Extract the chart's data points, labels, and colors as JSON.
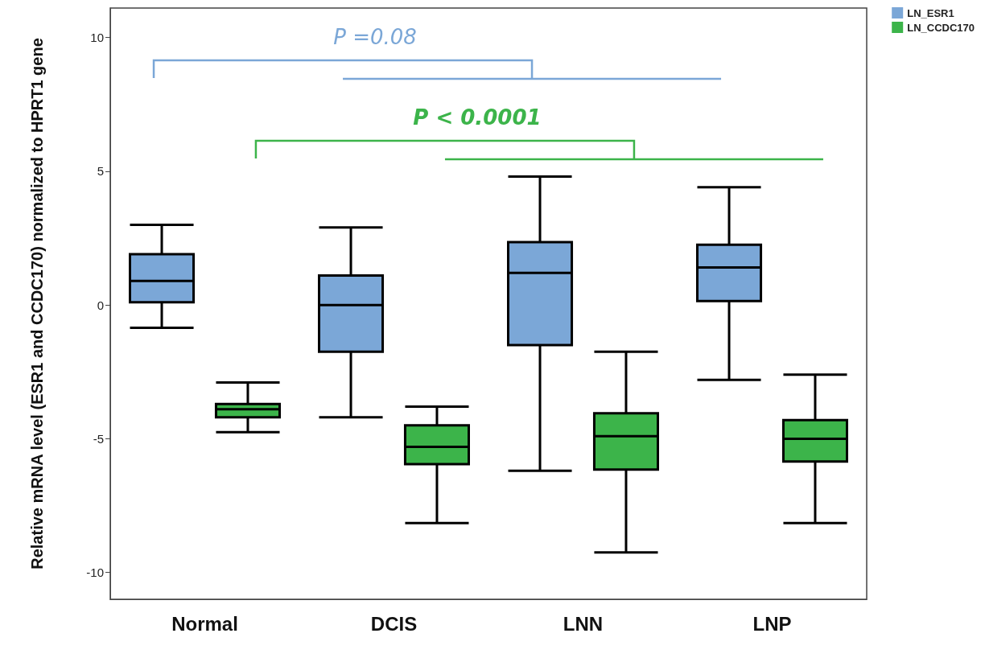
{
  "chart_data": {
    "type": "box",
    "ylabel": "Relative mRNA level (ESR1 and CCDC170) normalized to HPRT1 gene",
    "categories": [
      "Normal",
      "DCIS",
      "LNN",
      "LNP"
    ],
    "series": [
      {
        "name": "LN_ESR1",
        "color": "#7ba7d7",
        "boxes": [
          {
            "low": -0.85,
            "q1": 0.1,
            "median": 0.9,
            "q3": 1.9,
            "high": 3.0
          },
          {
            "low": -4.2,
            "q1": -1.75,
            "median": 0.0,
            "q3": 1.1,
            "high": 2.9
          },
          {
            "low": -6.2,
            "q1": -1.5,
            "median": 1.2,
            "q3": 2.35,
            "high": 4.8
          },
          {
            "low": -2.8,
            "q1": 0.15,
            "median": 1.4,
            "q3": 2.25,
            "high": 4.4
          }
        ]
      },
      {
        "name": "LN_CCDC170",
        "color": "#3cb44a",
        "boxes": [
          {
            "low": -4.75,
            "q1": -4.2,
            "median": -3.9,
            "q3": -3.7,
            "high": -2.9
          },
          {
            "low": -8.15,
            "q1": -5.95,
            "median": -5.3,
            "q3": -4.5,
            "high": -3.8
          },
          {
            "low": -9.25,
            "q1": -6.15,
            "median": -4.9,
            "q3": -4.05,
            "high": -1.75
          },
          {
            "low": -8.15,
            "q1": -5.85,
            "median": -5.0,
            "q3": -4.3,
            "high": -2.6
          }
        ]
      }
    ],
    "ylim": [
      -11,
      11.1
    ],
    "yticks": [
      -10,
      -5,
      0,
      5,
      10
    ],
    "annotations": [
      "P =0.08",
      "P < 0.0001"
    ],
    "legend": "top right",
    "grid": false
  }
}
